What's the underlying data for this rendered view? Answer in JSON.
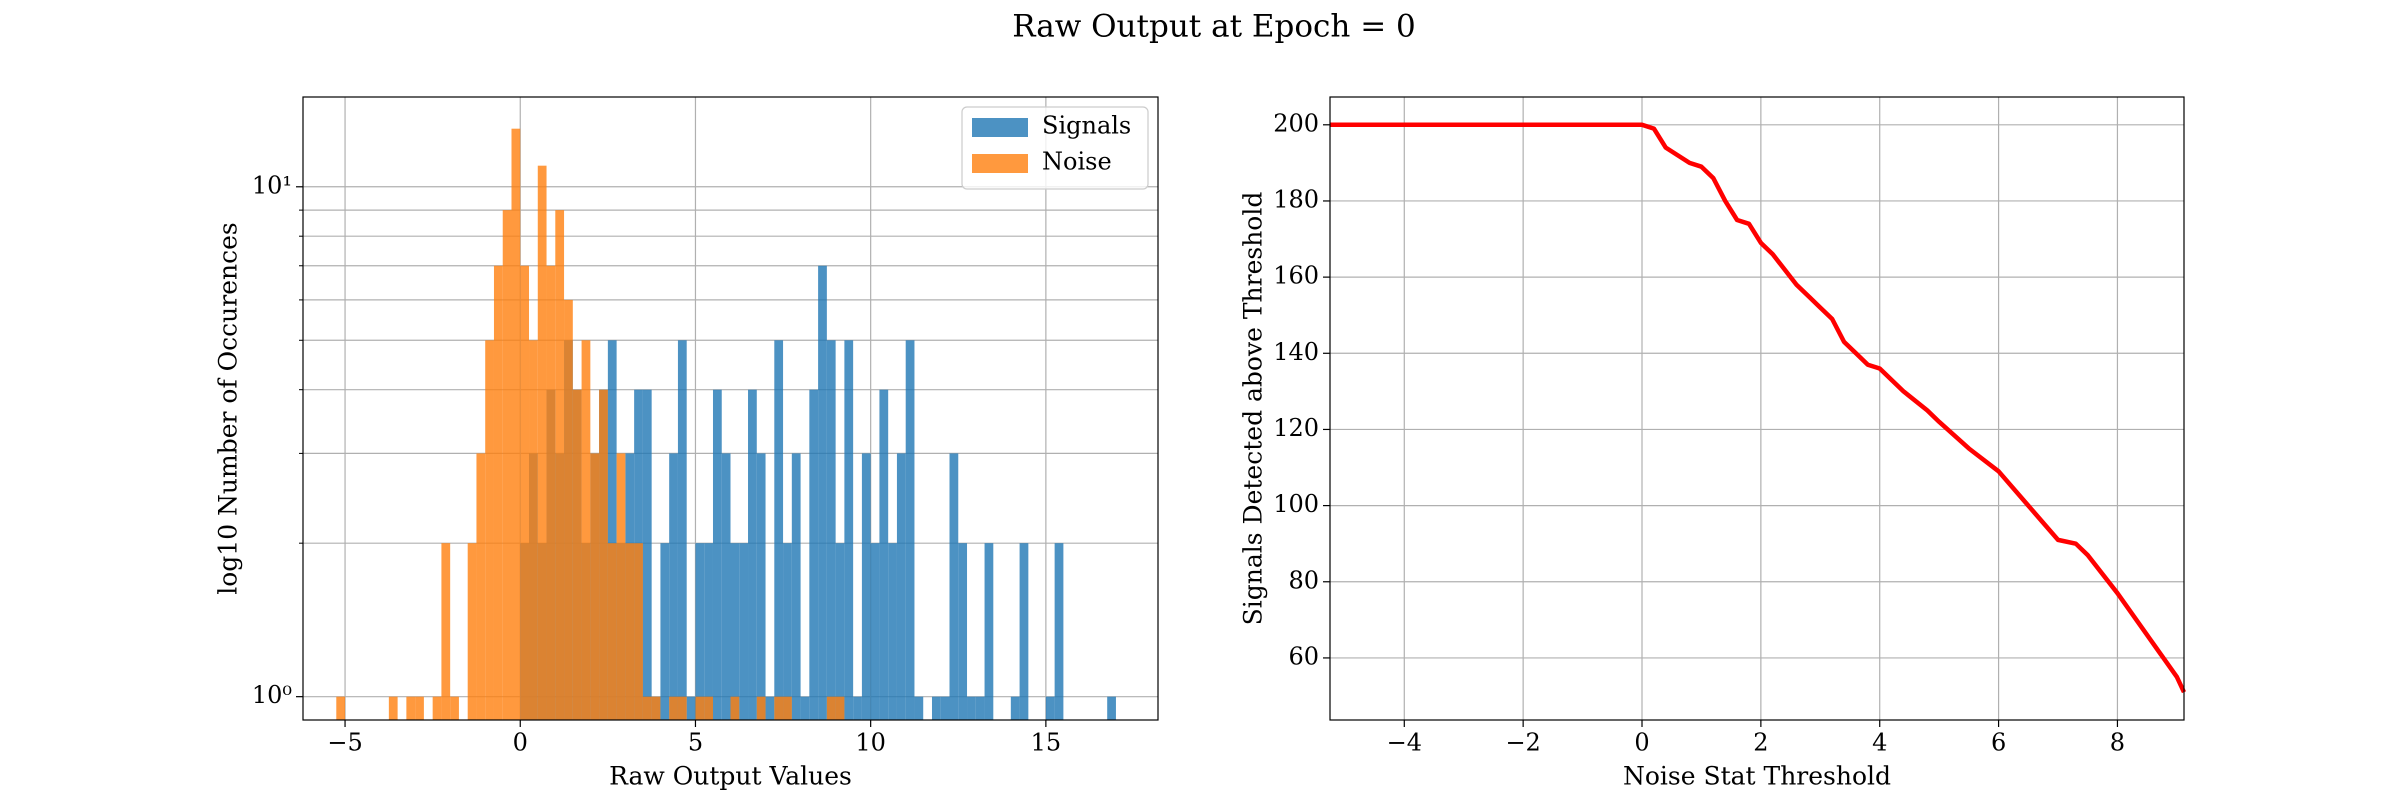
{
  "title": "Raw Output at Epoch = 0",
  "chart_data": [
    {
      "type": "histogram",
      "xlabel": "Raw Output Values",
      "ylabel": "log10 Number of Occurences",
      "log_y": true,
      "grid": true,
      "legend": "upper right",
      "xlim": [
        -6.2,
        18.2
      ],
      "ylim": [
        0.9,
        15
      ],
      "xticks": [
        {
          "value": -5,
          "label": "−5"
        },
        0,
        5,
        10,
        15
      ],
      "yticks": [
        {
          "value": 1,
          "label": "10⁰"
        },
        {
          "value": 10,
          "label": "10¹"
        }
      ],
      "yminorticks": [
        2,
        3,
        4,
        5,
        6,
        7,
        8,
        9
      ],
      "series": [
        {
          "name": "Signals",
          "color": "#1f77b4",
          "bins": [
            0,
            0.25,
            0.5,
            0.75,
            1,
            1.25,
            1.5,
            1.75,
            2,
            2.25,
            2.5,
            2.75,
            3,
            3.25,
            3.5,
            3.75,
            4,
            4.25,
            4.5,
            4.75,
            5,
            5.25,
            5.5,
            5.75,
            6,
            6.25,
            6.5,
            6.75,
            7,
            7.25,
            7.5,
            7.75,
            8,
            8.25,
            8.5,
            8.75,
            9,
            9.25,
            9.5,
            9.75,
            10,
            10.25,
            10.5,
            10.75,
            11,
            11.25,
            11.5,
            11.75,
            12,
            12.25,
            12.5,
            12.75,
            13,
            13.25,
            13.5,
            13.75,
            14,
            14.25,
            14.5,
            14.75,
            15,
            15.25,
            15.5,
            15.75,
            16,
            16.25,
            16.5,
            16.75,
            17
          ],
          "values": [
            2,
            3,
            2,
            4,
            3,
            5,
            4,
            2,
            3,
            4,
            5,
            2,
            3,
            4,
            4,
            1,
            2,
            3,
            5,
            1,
            2,
            2,
            4,
            3,
            2,
            2,
            4,
            3,
            1,
            5,
            2,
            3,
            1,
            4,
            7,
            5,
            2,
            5,
            1,
            3,
            2,
            4,
            2,
            3,
            5,
            1,
            0,
            1,
            1,
            3,
            2,
            1,
            1,
            2,
            0,
            0,
            1,
            2,
            0,
            0,
            1,
            2,
            0,
            0,
            0,
            0,
            0,
            1
          ]
        },
        {
          "name": "Noise",
          "color": "#ff7f0e",
          "bins": [
            -5.25,
            -5,
            -4.75,
            -4.5,
            -4.25,
            -4,
            -3.75,
            -3.5,
            -3.25,
            -3,
            -2.75,
            -2.5,
            -2.25,
            -2,
            -1.75,
            -1.5,
            -1.25,
            -1,
            -0.75,
            -0.5,
            -0.25,
            0,
            0.25,
            0.5,
            0.75,
            1,
            1.25,
            1.5,
            1.75,
            2,
            2.25,
            2.5,
            2.75,
            3,
            3.25,
            3.5,
            3.75,
            4,
            4.25,
            4.5,
            4.75,
            5,
            5.25,
            5.5,
            5.75,
            6,
            6.25,
            6.5,
            6.75,
            7,
            7.25,
            7.5,
            7.75,
            8,
            8.25,
            8.5,
            8.75,
            9,
            9.25
          ],
          "values": [
            1,
            0,
            0,
            0,
            0,
            0,
            1,
            0,
            1,
            1,
            0,
            1,
            2,
            1,
            0,
            2,
            3,
            5,
            7,
            9,
            13,
            7,
            5,
            11,
            7,
            9,
            6,
            4,
            5,
            3,
            4,
            2,
            3,
            2,
            2,
            1,
            1,
            0,
            1,
            1,
            0,
            1,
            1,
            0,
            0,
            1,
            0,
            0,
            1,
            0,
            1,
            1,
            0,
            0,
            0,
            0,
            1,
            1
          ]
        }
      ]
    },
    {
      "type": "line",
      "xlabel": "Noise Stat Threshold",
      "ylabel": "Signals Detected above Threshold",
      "grid": true,
      "color": "#ff0000",
      "xlim": [
        -5.25,
        9.12
      ],
      "ylim": [
        43.7,
        207.3
      ],
      "xticks": [
        {
          "value": -4,
          "label": "−4"
        },
        {
          "value": -2,
          "label": "−2"
        },
        0,
        2,
        4,
        6,
        8
      ],
      "yticks": [
        60,
        80,
        100,
        120,
        140,
        160,
        180,
        200
      ],
      "x": [
        -5.25,
        0,
        0.2,
        0.4,
        0.6,
        0.8,
        1.0,
        1.2,
        1.4,
        1.6,
        1.8,
        2.0,
        2.2,
        2.4,
        2.6,
        2.8,
        3.0,
        3.2,
        3.4,
        3.6,
        3.8,
        4.0,
        4.4,
        4.8,
        5.0,
        5.5,
        6.0,
        6.5,
        7.0,
        7.3,
        7.5,
        8.0,
        8.5,
        9.0,
        9.12
      ],
      "values": [
        200,
        200,
        199,
        194,
        192,
        190,
        189,
        186,
        180,
        175,
        174,
        169,
        166,
        162,
        158,
        155,
        152,
        149,
        143,
        140,
        137,
        136,
        130,
        125,
        122,
        115,
        109,
        100,
        91,
        90,
        87,
        77,
        66,
        55,
        51
      ]
    }
  ]
}
